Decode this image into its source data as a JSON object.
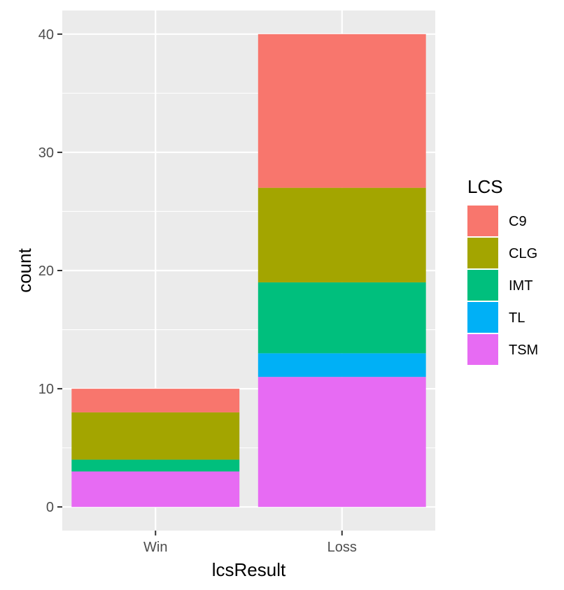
{
  "chart_data": {
    "type": "bar",
    "stacked": true,
    "title": "",
    "xlabel": "lcsResult",
    "ylabel": "count",
    "categories": [
      "Win",
      "Loss"
    ],
    "series": [
      {
        "name": "C9",
        "values": [
          2,
          13
        ],
        "color": "#F8766D"
      },
      {
        "name": "CLG",
        "values": [
          4,
          8
        ],
        "color": "#A3A500"
      },
      {
        "name": "IMT",
        "values": [
          1,
          6
        ],
        "color": "#00BF7D"
      },
      {
        "name": "TL",
        "values": [
          0,
          2
        ],
        "color": "#00B0F6"
      },
      {
        "name": "TSM",
        "values": [
          3,
          11
        ],
        "color": "#E76BF3"
      }
    ],
    "stack_order_bottom_to_top": [
      "TSM",
      "TL",
      "IMT",
      "CLG",
      "C9"
    ],
    "ylim": [
      -2,
      42
    ],
    "yticks": [
      0,
      10,
      20,
      30,
      40
    ],
    "grid": true,
    "panel_background": "#EBEBEB",
    "grid_color": "#FFFFFF",
    "legend": {
      "title": "LCS",
      "placement": "right",
      "entries": [
        "C9",
        "CLG",
        "IMT",
        "TL",
        "TSM"
      ]
    }
  }
}
